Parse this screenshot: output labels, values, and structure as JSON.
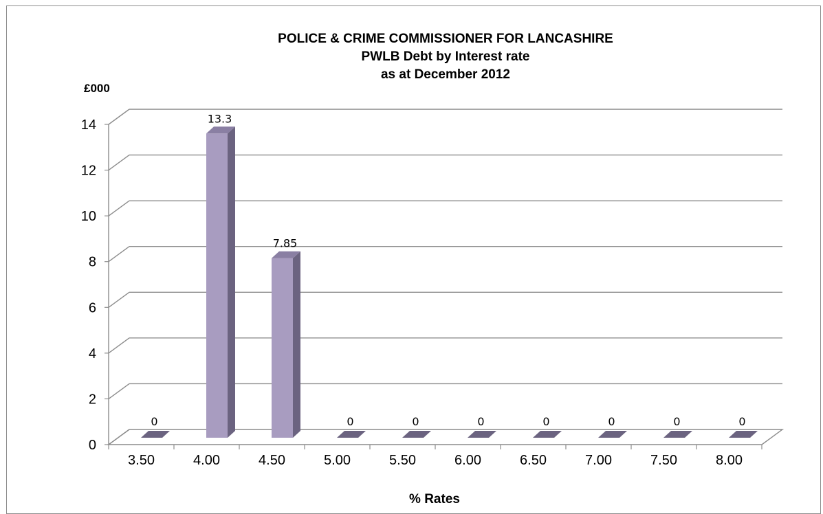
{
  "chart_data": {
    "type": "bar",
    "title": [
      "POLICE & CRIME COMMISSIONER FOR LANCASHIRE",
      "PWLB Debt by Interest rate",
      "as at December 2012"
    ],
    "ylabel": "£000",
    "xlabel": "% Rates",
    "categories": [
      "3.50",
      "4.00",
      "4.50",
      "5.00",
      "5.50",
      "6.00",
      "6.50",
      "7.00",
      "7.50",
      "8.00"
    ],
    "values": [
      0,
      13.3,
      7.85,
      0,
      0,
      0,
      0,
      0,
      0,
      0
    ],
    "data_labels": [
      "0",
      "13.3",
      "7.85",
      "0",
      "0",
      "0",
      "0",
      "0",
      "0",
      "0"
    ],
    "yticks": [
      "0",
      "2",
      "4",
      "6",
      "8",
      "10",
      "12",
      "14"
    ],
    "ylim": [
      0,
      14
    ],
    "grid": true,
    "style": "3d-column",
    "colors": {
      "bar_front": "#a89cc0",
      "bar_side": "#6b6380",
      "bar_top": "#8a7fa3",
      "grid": "#8c8c8c"
    }
  }
}
